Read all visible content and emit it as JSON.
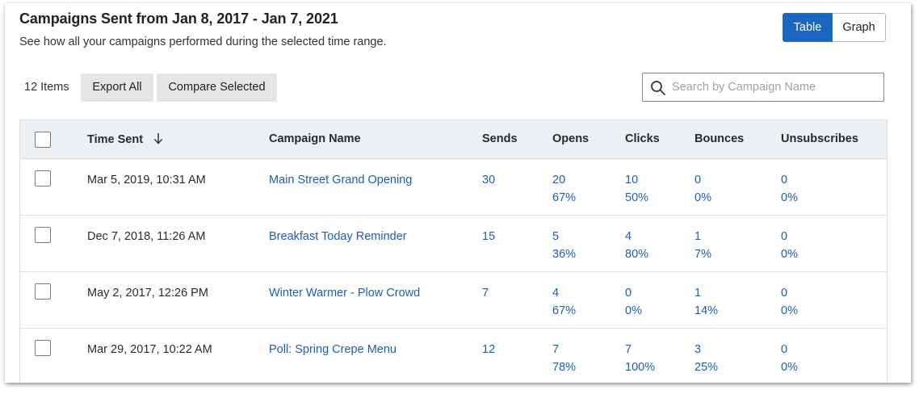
{
  "header": {
    "title": "Campaigns Sent from Jan 8, 2017 - Jan 7, 2021",
    "subtitle": "See how all your campaigns performed during the selected time range."
  },
  "view_toggle": {
    "table_label": "Table",
    "graph_label": "Graph",
    "selected": "Table"
  },
  "toolbar": {
    "item_count": "12 Items",
    "export_label": "Export All",
    "compare_label": "Compare Selected"
  },
  "search": {
    "placeholder": "Search by Campaign Name",
    "value": ""
  },
  "table": {
    "columns": {
      "time_sent": "Time Sent",
      "campaign_name": "Campaign Name",
      "sends": "Sends",
      "opens": "Opens",
      "clicks": "Clicks",
      "bounces": "Bounces",
      "unsubscribes": "Unsubscribes"
    },
    "sort_column": "Time Sent",
    "sort_direction": "descending",
    "rows": [
      {
        "time": "Mar 5, 2019, 10:31 AM",
        "name": "Main Street Grand Opening",
        "sends": "30",
        "opens": "20",
        "opens_pct": "67%",
        "clicks": "10",
        "clicks_pct": "50%",
        "bounces": "0",
        "bounces_pct": "0%",
        "unsub": "0",
        "unsub_pct": "0%"
      },
      {
        "time": "Dec 7, 2018, 11:26 AM",
        "name": "Breakfast Today Reminder",
        "sends": "15",
        "opens": "5",
        "opens_pct": "36%",
        "clicks": "4",
        "clicks_pct": "80%",
        "bounces": "1",
        "bounces_pct": "7%",
        "unsub": "0",
        "unsub_pct": "0%"
      },
      {
        "time": "May 2, 2017, 12:26 PM",
        "name": "Winter Warmer - Plow Crowd",
        "sends": "7",
        "opens": "4",
        "opens_pct": "67%",
        "clicks": "0",
        "clicks_pct": "0%",
        "bounces": "1",
        "bounces_pct": "14%",
        "unsub": "0",
        "unsub_pct": "0%"
      },
      {
        "time": "Mar 29, 2017, 10:22 AM",
        "name": "Poll: Spring Crepe Menu",
        "sends": "12",
        "opens": "7",
        "opens_pct": "78%",
        "clicks": "7",
        "clicks_pct": "100%",
        "bounces": "3",
        "bounces_pct": "25%",
        "unsub": "0",
        "unsub_pct": "0%"
      }
    ]
  },
  "colors": {
    "accent": "#1a66c0",
    "link": "#1b5fb3",
    "header_bg": "#edf0f3",
    "button_bg": "#e6e6e6"
  },
  "icons": {
    "search": "search-icon",
    "sort": "arrow-down-icon"
  }
}
